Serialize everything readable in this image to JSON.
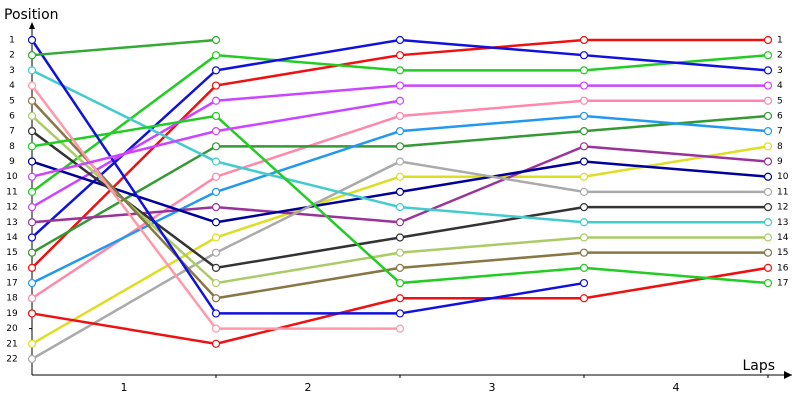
{
  "chart_data": {
    "type": "line",
    "ylabel": "Position",
    "xlabel": "Laps",
    "x": [
      0,
      1,
      2,
      3,
      4
    ],
    "xlim": [
      0,
      4
    ],
    "xticks": [
      1,
      2,
      3,
      4
    ],
    "ylim": [
      1,
      22
    ],
    "yticks": [
      1,
      2,
      3,
      4,
      5,
      6,
      7,
      8,
      9,
      10,
      11,
      12,
      13,
      14,
      15,
      16,
      17,
      18,
      19,
      20,
      21,
      22
    ],
    "y_reversed": true,
    "series": [
      {
        "color": "#ee1111",
        "values": [
          16,
          4,
          2,
          1,
          1
        ]
      },
      {
        "color": "#22cc22",
        "values": [
          11,
          2,
          3,
          3,
          2
        ]
      },
      {
        "color": "#1111dd",
        "values": [
          14,
          3,
          1,
          2,
          3
        ]
      },
      {
        "color": "#cc44ff",
        "values": [
          12,
          5,
          4,
          4,
          4
        ]
      },
      {
        "color": "#ff88aa",
        "values": [
          18,
          10,
          6,
          5,
          5
        ]
      },
      {
        "color": "#339933",
        "values": [
          15,
          8,
          8,
          7,
          6
        ]
      },
      {
        "color": "#2299ee",
        "values": [
          17,
          11,
          7,
          6,
          7
        ]
      },
      {
        "color": "#dddd22",
        "values": [
          21,
          14,
          10,
          10,
          8
        ]
      },
      {
        "color": "#993399",
        "values": [
          13,
          12,
          13,
          8,
          9
        ]
      },
      {
        "color": "#000099",
        "values": [
          9,
          13,
          11,
          9,
          10
        ]
      },
      {
        "color": "#aaaaaa",
        "values": [
          22,
          15,
          9,
          11,
          11
        ]
      },
      {
        "color": "#333333",
        "values": [
          7,
          16,
          14,
          12,
          12
        ]
      },
      {
        "color": "#44cccc",
        "values": [
          3,
          9,
          12,
          13,
          13
        ]
      },
      {
        "color": "#aacc66",
        "values": [
          6,
          17,
          15,
          14,
          14
        ]
      },
      {
        "color": "#887744",
        "values": [
          5,
          18,
          16,
          15,
          15
        ]
      },
      {
        "color": "#ee1111",
        "values": [
          19,
          21,
          18,
          18,
          16
        ]
      },
      {
        "color": "#22cc22",
        "values": [
          8,
          6,
          17,
          16,
          17
        ]
      },
      {
        "color": "#1111dd",
        "values": [
          1,
          19,
          19,
          17,
          null
        ]
      },
      {
        "color": "#33aa33",
        "values": [
          2,
          1,
          null,
          null,
          null
        ]
      },
      {
        "color": "#ff99aa",
        "values": [
          4,
          20,
          20,
          null,
          null
        ]
      },
      {
        "color": "#cc44ff",
        "values": [
          10,
          7,
          5,
          null,
          null
        ]
      }
    ]
  }
}
